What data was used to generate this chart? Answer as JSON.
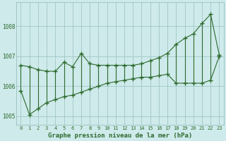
{
  "title": "Graphe pression niveau de la mer (hPa)",
  "xlabel": "Graphe pression niveau de la mer (hPa)",
  "hours": [
    0,
    1,
    2,
    3,
    4,
    5,
    6,
    7,
    8,
    9,
    10,
    11,
    12,
    13,
    14,
    15,
    16,
    17,
    18,
    19,
    20,
    21,
    22,
    23
  ],
  "top_values": [
    1006.7,
    1006.65,
    1006.55,
    1006.5,
    1006.5,
    1006.8,
    1006.65,
    1007.1,
    1006.75,
    1006.7,
    1006.7,
    1006.7,
    1006.7,
    1006.7,
    1006.75,
    1006.85,
    1006.95,
    1007.1,
    1007.4,
    1007.6,
    1007.75,
    1008.1,
    1008.4,
    1007.05
  ],
  "bot_values": [
    1005.85,
    1005.05,
    1005.25,
    1005.45,
    1005.55,
    1005.65,
    1005.7,
    1005.8,
    1005.9,
    1006.0,
    1006.1,
    1006.15,
    1006.2,
    1006.25,
    1006.3,
    1006.3,
    1006.35,
    1006.4,
    1006.1,
    1006.1,
    1006.1,
    1006.1,
    1006.2,
    1007.0
  ],
  "ylim": [
    1004.7,
    1008.8
  ],
  "yticks": [
    1005,
    1006,
    1007,
    1008
  ],
  "xlim": [
    -0.5,
    23.5
  ],
  "line_color": "#2d6a2d",
  "bg_color": "#ceeaea",
  "grid_color": "#9ac0c0",
  "marker": "P",
  "marker_size": 3.5,
  "line_width": 0.8
}
